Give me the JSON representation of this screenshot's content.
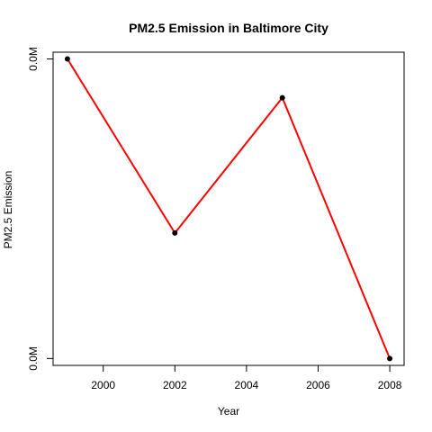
{
  "chart_data": {
    "type": "line",
    "title": "PM2.5 Emission in Baltimore City",
    "xlabel": "Year",
    "ylabel": "PM2.5 Emission",
    "x": [
      1999,
      2002,
      2005,
      2008
    ],
    "series": [
      {
        "values": [
          3274.18,
          2453.916,
          3091.354,
          1862.282
        ]
      }
    ],
    "xlim": [
      1998.6,
      2008.4
    ],
    "ylim": [
      1830,
      3306
    ],
    "x_ticks": [
      2000,
      2002,
      2004,
      2006,
      2008
    ],
    "x_tick_labels": [
      "2000",
      "2002",
      "2004",
      "2006",
      "2008"
    ],
    "y_ticks": [
      1862.282,
      3274.18
    ],
    "y_tick_labels": [
      "0.0M",
      "0.0M"
    ],
    "grid": false,
    "legend": "none",
    "line_color": "#ff0000",
    "point_color": "#000000"
  }
}
